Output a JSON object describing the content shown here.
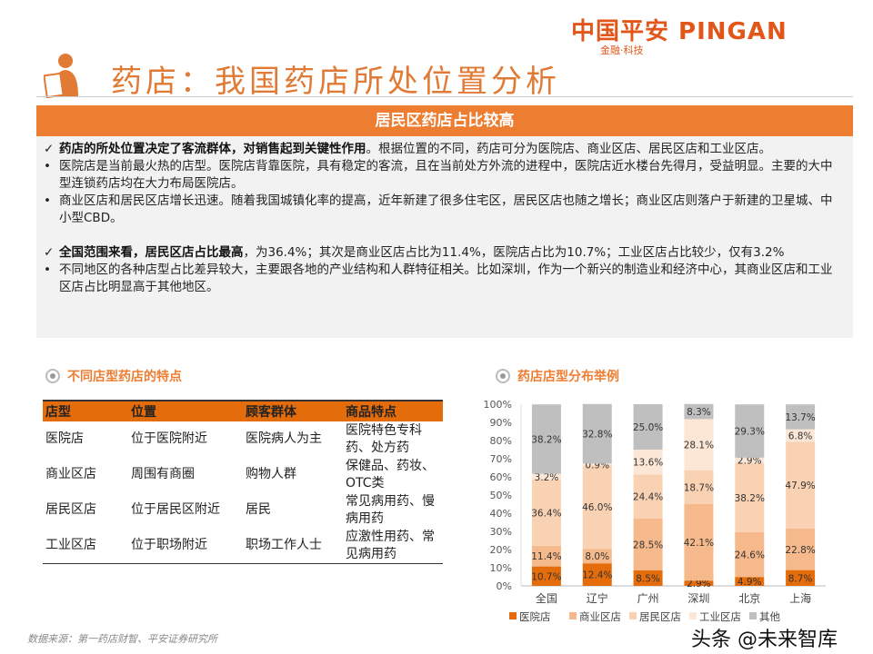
{
  "brand": {
    "logo": "中国平安 PINGAN",
    "tagline": "金融·科技"
  },
  "title": "药店：我国药店所处位置分析",
  "banner": "居民区药店占比较高",
  "summary": [
    {
      "marker": "✓",
      "bold": "药店的所处位置决定了客流群体，对销售起到关键性作用",
      "text": "。根据位置的不同，药店可分为医院店、商业区店、居民区店和工业区店。"
    },
    {
      "marker": "•",
      "bold": "",
      "text": "医院店是当前最火热的店型。医院店背靠医院，具有稳定的客流，且在当前处方外流的进程中，医院店近水楼台先得月，受益明显。主要的大中型连锁药店均在大力布局医院店。"
    },
    {
      "marker": "•",
      "bold": "",
      "text": "商业区店和居民区店增长迅速。随着我国城镇化率的提高，近年新建了很多住宅区，居民区店也随之增长；商业区店则落户于新建的卫星城、中小型CBD。"
    },
    {
      "marker": "✓",
      "bold": "全国范围来看，居民区店占比最高",
      "text": "，为36.4%；其次是商业区店占比为11.4%，医院店占比为10.7%；工业区店占比较少，仅有3.2%"
    },
    {
      "marker": "•",
      "bold": "",
      "text": "不同地区的各种店型占比差异较大，主要跟各地的产业结构和人群特征相关。比如深圳，作为一个新兴的制造业和经济中心，其商业区店和工业区店占比明显高于其他地区。"
    }
  ],
  "table_section": {
    "title": "不同店型药店的特点",
    "headers": [
      "店型",
      "位置",
      "顾客群体",
      "商品特点"
    ],
    "rows": [
      [
        "医院店",
        "位于医院附近",
        "医院病人为主",
        "医院特色专科药、处方药"
      ],
      [
        "商业区店",
        "周围有商圈",
        "购物人群",
        "保健品、药妆、OTC类"
      ],
      [
        "居民区店",
        "位于居民区附近",
        "居民",
        "常见病用药、慢病用药"
      ],
      [
        "工业区店",
        "位于职场附近",
        "职场工作人士",
        "应激性用药、常见病用药"
      ]
    ]
  },
  "chart_section": {
    "title": "药店店型分布举例"
  },
  "chart_data": {
    "type": "bar",
    "stacked": true,
    "percent": true,
    "categories": [
      "全国",
      "辽宁",
      "广州",
      "深圳",
      "北京",
      "上海"
    ],
    "series": [
      {
        "name": "医院店",
        "color": "#E46C0A",
        "values": [
          10.7,
          12.4,
          8.5,
          2.9,
          4.9,
          8.7
        ]
      },
      {
        "name": "商业区店",
        "color": "#F6B98B",
        "values": [
          11.4,
          8.0,
          28.5,
          42.1,
          24.6,
          22.8
        ]
      },
      {
        "name": "居民区店",
        "color": "#F9D2B4",
        "values": [
          36.4,
          46.0,
          24.4,
          18.7,
          38.2,
          47.9
        ]
      },
      {
        "name": "工业区店",
        "color": "#FCE6D6",
        "values": [
          3.2,
          0.9,
          13.6,
          28.1,
          2.9,
          6.8
        ]
      },
      {
        "name": "其他",
        "color": "#BFBFBF",
        "values": [
          38.2,
          32.8,
          25.0,
          8.3,
          29.3,
          13.7
        ]
      }
    ],
    "yticks": [
      "0%",
      "10%",
      "20%",
      "30%",
      "40%",
      "50%",
      "60%",
      "70%",
      "80%",
      "90%",
      "100%"
    ],
    "ylim": [
      0,
      100
    ],
    "grid": false,
    "legend": "bottom"
  },
  "footer": "数据来源：第一药店财智、平安证券研究所",
  "watermark": "头条 @未来智库"
}
